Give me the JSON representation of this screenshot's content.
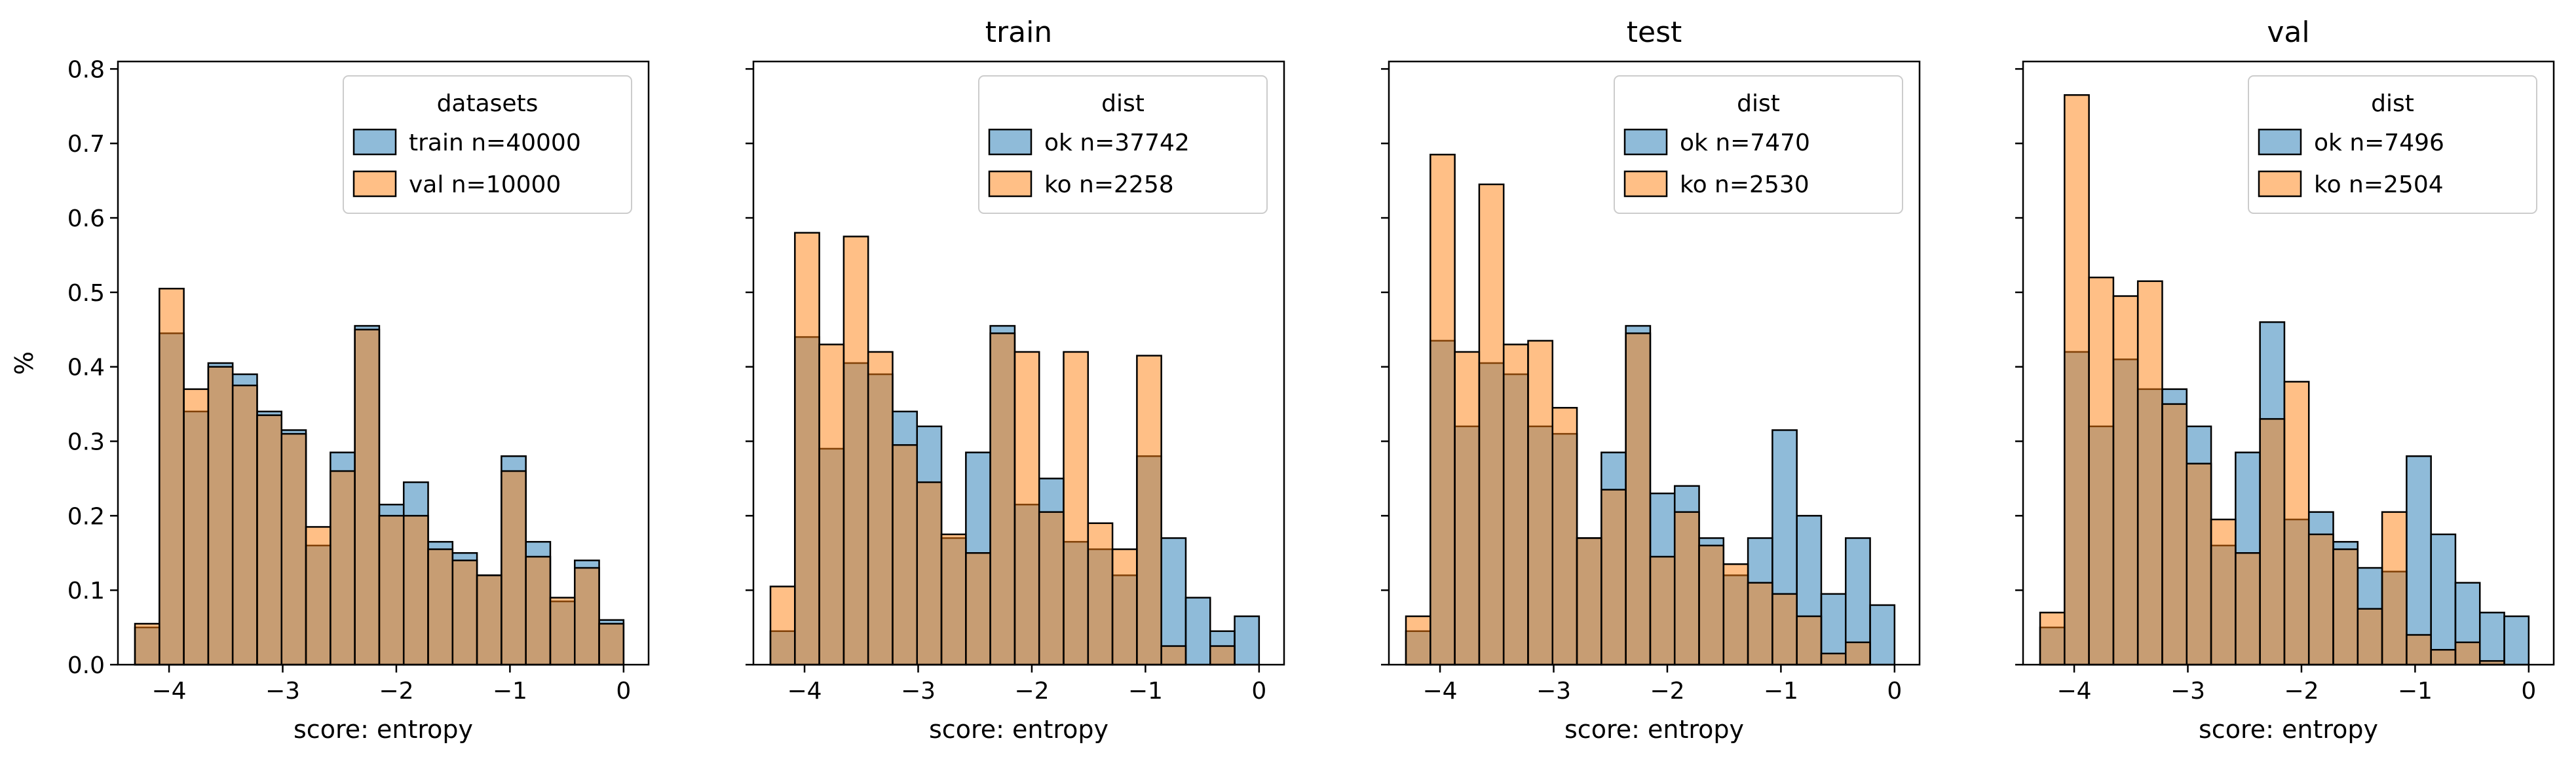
{
  "figure": {
    "ylabel": "%",
    "xlabel": "score: entropy",
    "sharey": true
  },
  "chart_data": [
    {
      "type": "histogram",
      "title": "",
      "xlabel": "score: entropy",
      "ylabel": "%",
      "xlim": [
        -4.45,
        0.22
      ],
      "ylim": [
        0,
        0.81
      ],
      "xticks": [
        -4,
        -3,
        -2,
        -1,
        0
      ],
      "xtick_labels": [
        "−4",
        "−3",
        "−2",
        "−1",
        "0"
      ],
      "yticks": [
        0.0,
        0.1,
        0.2,
        0.3,
        0.4,
        0.5,
        0.6,
        0.7,
        0.8
      ],
      "ytick_labels": [
        "0.0",
        "0.1",
        "0.2",
        "0.3",
        "0.4",
        "0.5",
        "0.6",
        "0.7",
        "0.8"
      ],
      "legend": {
        "title": "datasets",
        "placement": "top-right"
      },
      "bins": {
        "start": -4.3,
        "width": 0.215,
        "count": 20
      },
      "series": [
        {
          "name": "train n=40000",
          "color": "#1f77b4",
          "values": [
            0.05,
            0.445,
            0.34,
            0.405,
            0.39,
            0.34,
            0.315,
            0.16,
            0.285,
            0.455,
            0.215,
            0.245,
            0.165,
            0.15,
            0.12,
            0.28,
            0.165,
            0.085,
            0.14,
            0.06
          ]
        },
        {
          "name": "val n=10000",
          "color": "#ff7f0e",
          "values": [
            0.055,
            0.505,
            0.37,
            0.4,
            0.375,
            0.335,
            0.31,
            0.185,
            0.26,
            0.45,
            0.2,
            0.2,
            0.155,
            0.14,
            0.12,
            0.26,
            0.145,
            0.09,
            0.13,
            0.055
          ]
        }
      ]
    },
    {
      "type": "histogram",
      "title": "train",
      "xlabel": "score: entropy",
      "xlim": [
        -4.45,
        0.22
      ],
      "ylim": [
        0,
        0.81
      ],
      "xticks": [
        -4,
        -3,
        -2,
        -1,
        0
      ],
      "xtick_labels": [
        "−4",
        "−3",
        "−2",
        "−1",
        "0"
      ],
      "legend": {
        "title": "dist",
        "placement": "top-right"
      },
      "bins": {
        "start": -4.3,
        "width": 0.215,
        "count": 20
      },
      "series": [
        {
          "name": "ok n=37742",
          "color": "#1f77b4",
          "values": [
            0.045,
            0.44,
            0.29,
            0.405,
            0.39,
            0.34,
            0.32,
            0.17,
            0.285,
            0.455,
            0.215,
            0.25,
            0.165,
            0.155,
            0.12,
            0.28,
            0.17,
            0.09,
            0.045,
            0.065
          ]
        },
        {
          "name": "ko n=2258",
          "color": "#ff7f0e",
          "values": [
            0.105,
            0.58,
            0.43,
            0.575,
            0.42,
            0.295,
            0.245,
            0.175,
            0.15,
            0.445,
            0.42,
            0.205,
            0.42,
            0.19,
            0.155,
            0.415,
            0.025,
            0.0,
            0.025,
            0.0
          ]
        }
      ]
    },
    {
      "type": "histogram",
      "title": "test",
      "xlabel": "score: entropy",
      "xlim": [
        -4.45,
        0.22
      ],
      "ylim": [
        0,
        0.81
      ],
      "xticks": [
        -4,
        -3,
        -2,
        -1,
        0
      ],
      "xtick_labels": [
        "−4",
        "−3",
        "−2",
        "−1",
        "0"
      ],
      "legend": {
        "title": "dist",
        "placement": "top-right"
      },
      "bins": {
        "start": -4.3,
        "width": 0.215,
        "count": 20
      },
      "series": [
        {
          "name": "ok n=7470",
          "color": "#1f77b4",
          "values": [
            0.045,
            0.435,
            0.32,
            0.405,
            0.39,
            0.32,
            0.31,
            0.17,
            0.285,
            0.455,
            0.23,
            0.24,
            0.17,
            0.12,
            0.17,
            0.315,
            0.2,
            0.095,
            0.17,
            0.08
          ]
        },
        {
          "name": "ko n=2530",
          "color": "#ff7f0e",
          "values": [
            0.065,
            0.685,
            0.42,
            0.645,
            0.43,
            0.435,
            0.345,
            0.17,
            0.235,
            0.445,
            0.145,
            0.205,
            0.16,
            0.135,
            0.11,
            0.095,
            0.065,
            0.015,
            0.03,
            0.0
          ]
        }
      ]
    },
    {
      "type": "histogram",
      "title": "val",
      "xlabel": "score: entropy",
      "xlim": [
        -4.45,
        0.22
      ],
      "ylim": [
        0,
        0.81
      ],
      "xticks": [
        -4,
        -3,
        -2,
        -1,
        0
      ],
      "xtick_labels": [
        "−4",
        "−3",
        "−2",
        "−1",
        "0"
      ],
      "legend": {
        "title": "dist",
        "placement": "top-right"
      },
      "bins": {
        "start": -4.3,
        "width": 0.215,
        "count": 20
      },
      "series": [
        {
          "name": "ok n=7496",
          "color": "#1f77b4",
          "values": [
            0.05,
            0.42,
            0.32,
            0.41,
            0.37,
            0.37,
            0.32,
            0.16,
            0.285,
            0.46,
            0.195,
            0.205,
            0.165,
            0.13,
            0.125,
            0.28,
            0.175,
            0.11,
            0.07,
            0.065
          ]
        },
        {
          "name": "ko n=2504",
          "color": "#ff7f0e",
          "values": [
            0.07,
            0.765,
            0.52,
            0.495,
            0.515,
            0.35,
            0.27,
            0.195,
            0.15,
            0.33,
            0.38,
            0.175,
            0.155,
            0.075,
            0.205,
            0.04,
            0.02,
            0.03,
            0.005,
            0.0
          ]
        }
      ]
    }
  ]
}
